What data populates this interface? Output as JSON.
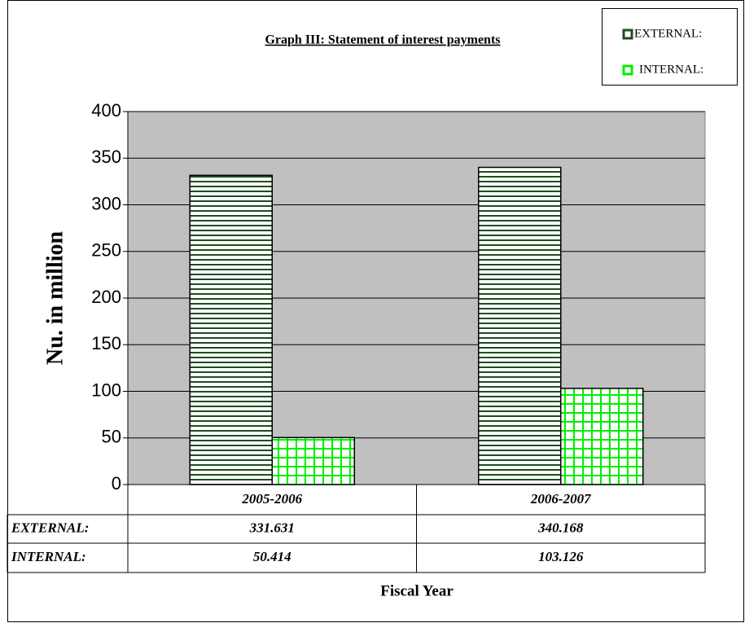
{
  "chart_data": {
    "type": "bar",
    "title": "Graph III: Statement of interest payments",
    "y_label": "Nu. in million",
    "x_label": "Fiscal Year",
    "categories": [
      "2005-2006",
      "2006-2007"
    ],
    "series": [
      {
        "name": "EXTERNAL:",
        "color": "#1e4d1e",
        "values": [
          331.631,
          340.168
        ]
      },
      {
        "name": "INTERNAL:",
        "color": "#00ee00",
        "values": [
          50.414,
          103.126
        ]
      }
    ],
    "ylim": [
      0,
      400
    ],
    "yticks": [
      0,
      50,
      100,
      150,
      200,
      250,
      300,
      350,
      400
    ],
    "grid": true,
    "legend": "top-right",
    "plot_background": "#c0c0c0"
  }
}
